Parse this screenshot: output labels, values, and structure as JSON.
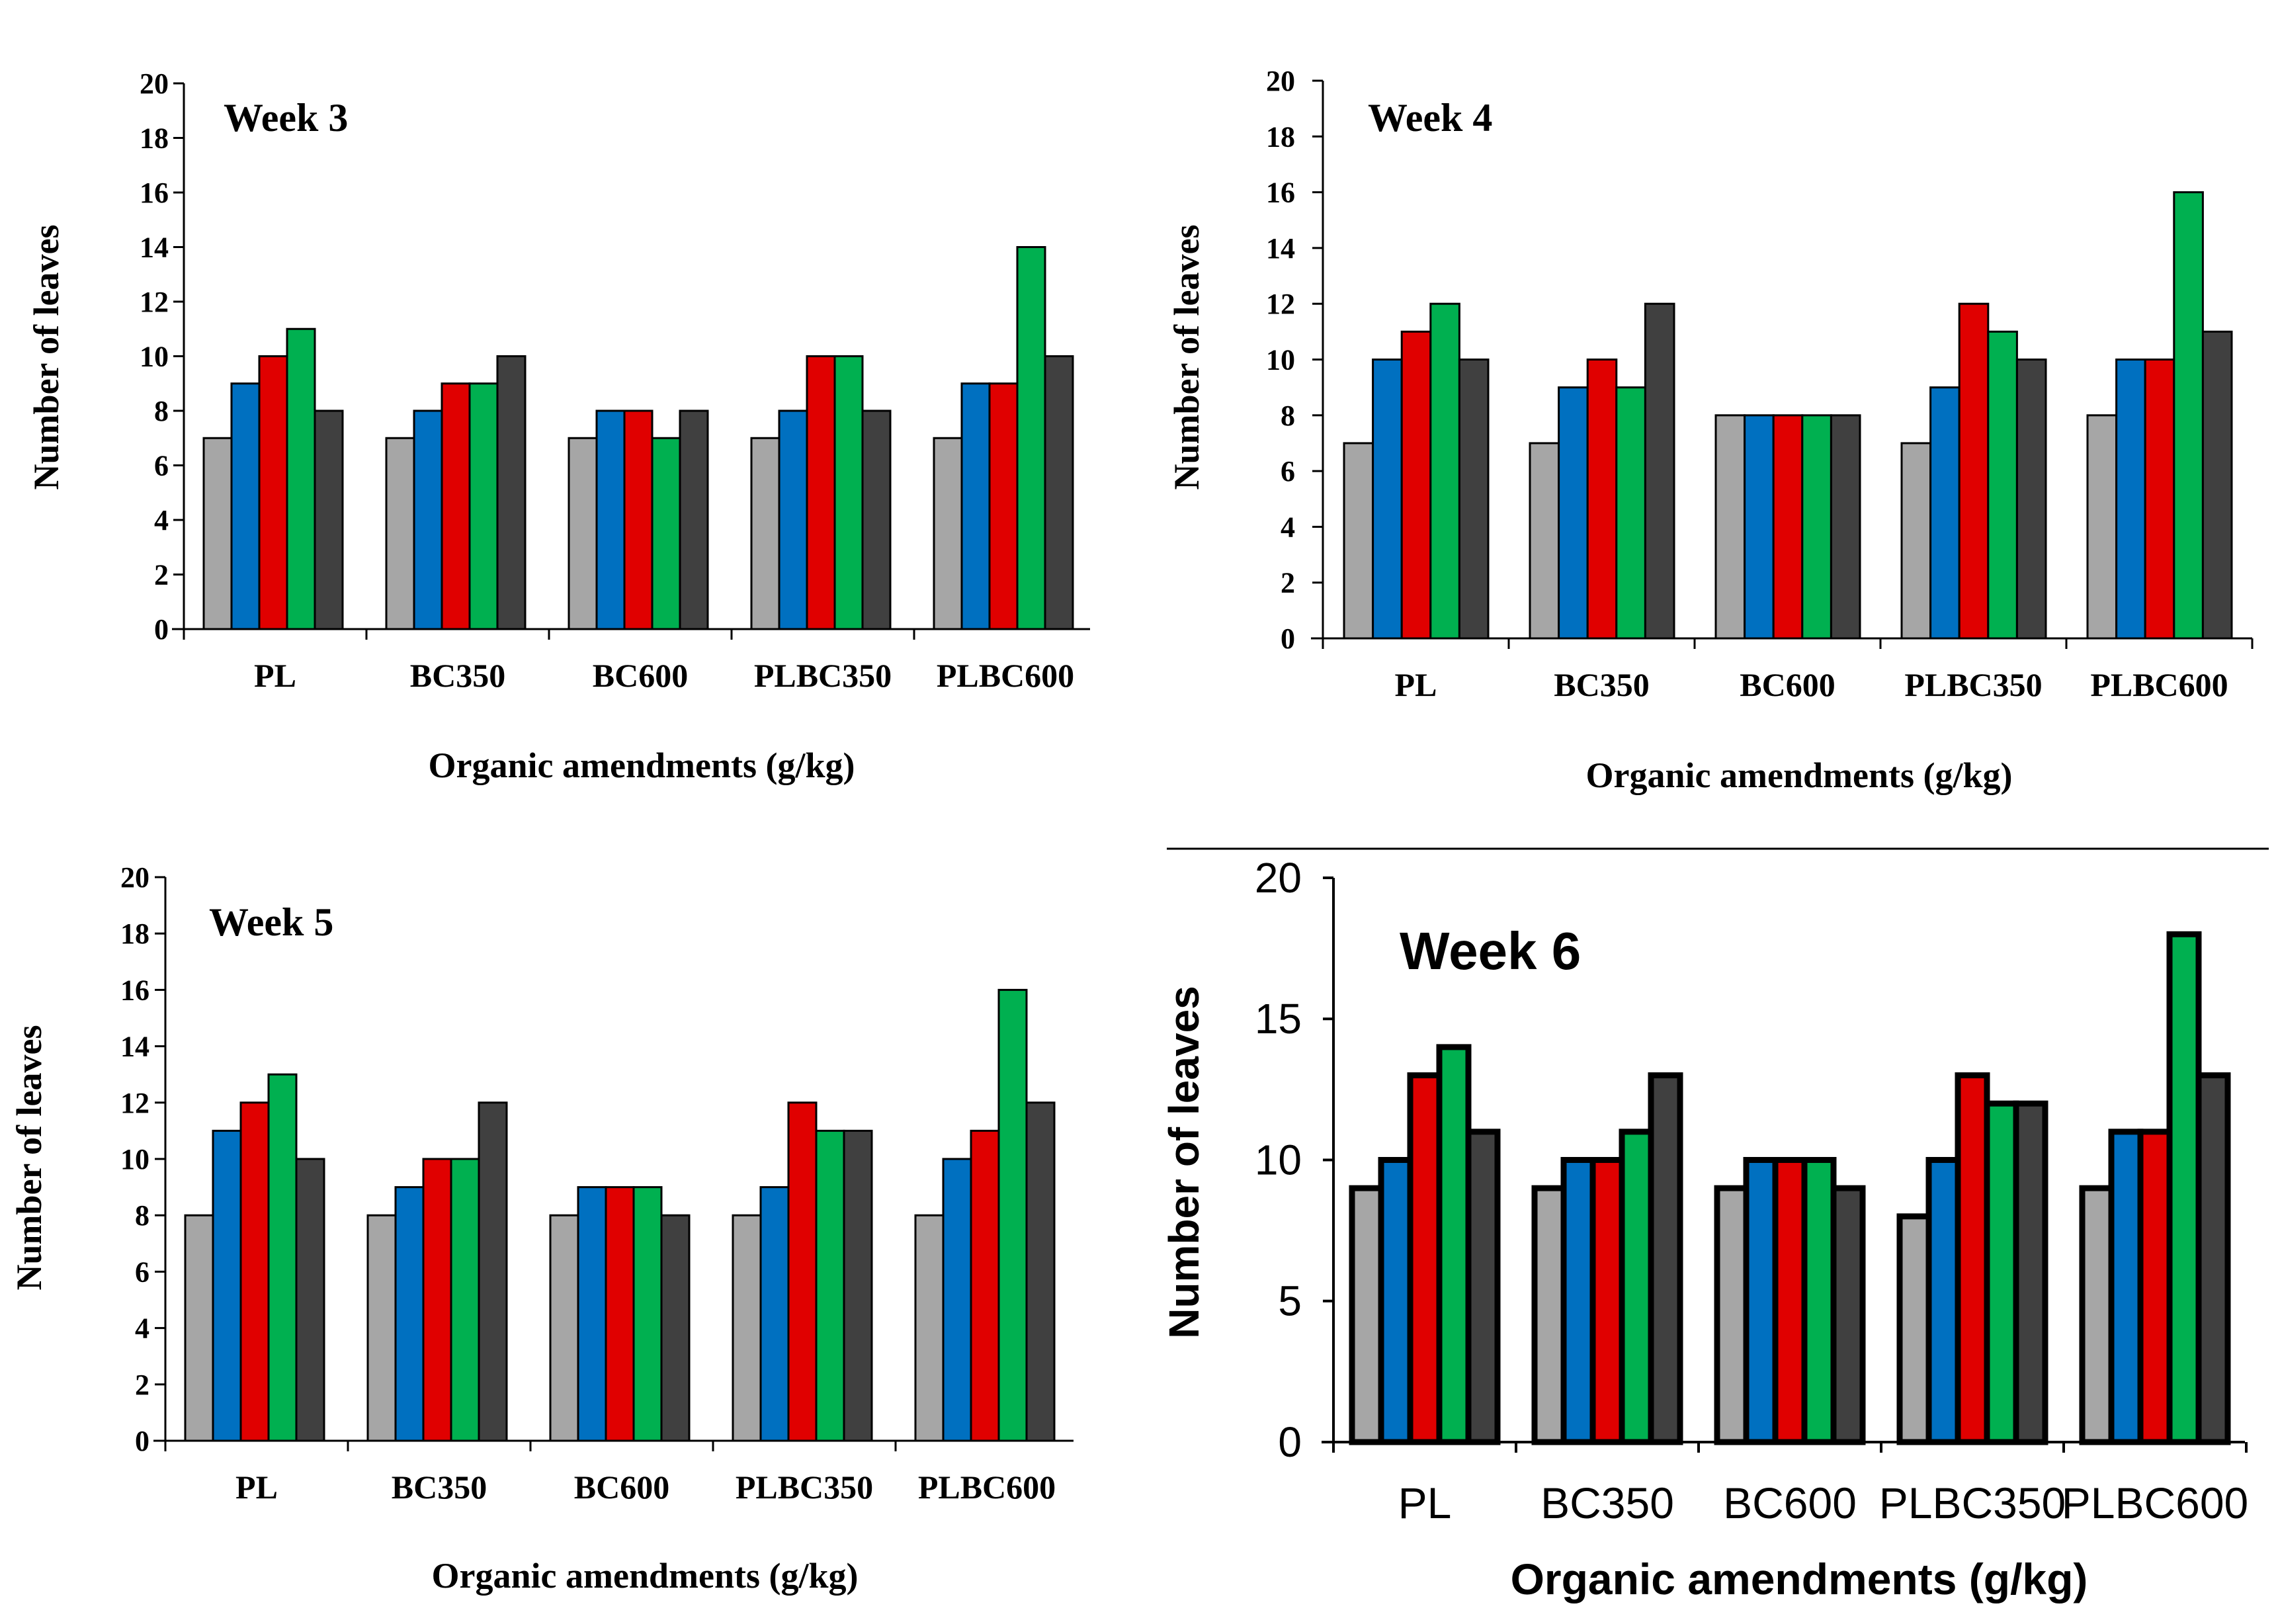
{
  "chart_data": [
    {
      "type": "bar",
      "title": "Week 3",
      "xlabel": "Organic amendments (g/kg)",
      "ylabel": "Number of leaves",
      "ylim": [
        0,
        20
      ],
      "yticks": [
        "0",
        "2",
        "4",
        "6",
        "8",
        "10",
        "12",
        "14",
        "16",
        "18",
        "20"
      ],
      "categories": [
        "PL",
        "BC350",
        "BC600",
        "PLBC350",
        "PLBC600"
      ],
      "series": [
        {
          "name": "series-1",
          "color": "#a6a6a6",
          "values": [
            7,
            7,
            7,
            7,
            7
          ]
        },
        {
          "name": "series-2",
          "color": "#0070c0",
          "values": [
            9,
            8,
            8,
            8,
            9
          ]
        },
        {
          "name": "series-3",
          "color": "#e00000",
          "values": [
            10,
            9,
            8,
            10,
            9
          ]
        },
        {
          "name": "series-4",
          "color": "#00b050",
          "values": [
            11,
            9,
            7,
            10,
            14
          ]
        },
        {
          "name": "series-5",
          "color": "#404040",
          "values": [
            8,
            10,
            8,
            8,
            10
          ]
        }
      ]
    },
    {
      "type": "bar",
      "title": "Week 4",
      "xlabel": "Organic amendments (g/kg)",
      "ylabel": "Number of leaves",
      "ylim": [
        0,
        20
      ],
      "yticks": [
        "0",
        "2",
        "4",
        "6",
        "8",
        "10",
        "12",
        "14",
        "16",
        "18",
        "20"
      ],
      "categories": [
        "PL",
        "BC350",
        "BC600",
        "PLBC350",
        "PLBC600"
      ],
      "series": [
        {
          "name": "series-1",
          "color": "#a6a6a6",
          "values": [
            7,
            7,
            8,
            7,
            8
          ]
        },
        {
          "name": "series-2",
          "color": "#0070c0",
          "values": [
            10,
            9,
            8,
            9,
            10
          ]
        },
        {
          "name": "series-3",
          "color": "#e00000",
          "values": [
            11,
            10,
            8,
            12,
            10
          ]
        },
        {
          "name": "series-4",
          "color": "#00b050",
          "values": [
            12,
            9,
            8,
            11,
            16
          ]
        },
        {
          "name": "series-5",
          "color": "#404040",
          "values": [
            10,
            12,
            8,
            10,
            11
          ]
        }
      ]
    },
    {
      "type": "bar",
      "title": "Week 5",
      "xlabel": "Organic amendments (g/kg)",
      "ylabel": "Number of leaves",
      "ylim": [
        0,
        20
      ],
      "yticks": [
        "0",
        "2",
        "4",
        "6",
        "8",
        "10",
        "12",
        "14",
        "16",
        "18",
        "20"
      ],
      "categories": [
        "PL",
        "BC350",
        "BC600",
        "PLBC350",
        "PLBC600"
      ],
      "series": [
        {
          "name": "series-1",
          "color": "#a6a6a6",
          "values": [
            8,
            8,
            8,
            8,
            8
          ]
        },
        {
          "name": "series-2",
          "color": "#0070c0",
          "values": [
            11,
            9,
            9,
            9,
            10
          ]
        },
        {
          "name": "series-3",
          "color": "#e00000",
          "values": [
            12,
            10,
            9,
            12,
            11
          ]
        },
        {
          "name": "series-4",
          "color": "#00b050",
          "values": [
            13,
            10,
            9,
            11,
            16
          ]
        },
        {
          "name": "series-5",
          "color": "#404040",
          "values": [
            10,
            12,
            8,
            11,
            12
          ]
        }
      ]
    },
    {
      "type": "bar",
      "title": "Week 6",
      "xlabel": "Organic  amendments  (g/kg)",
      "ylabel": "Number  of  leaves",
      "ylim": [
        0,
        20
      ],
      "yticks": [
        "0",
        "5",
        "10",
        "15",
        "20"
      ],
      "categories": [
        "PL",
        "BC350",
        "BC600",
        "PLBC350",
        "PLBC600"
      ],
      "series": [
        {
          "name": "series-1",
          "color": "#a6a6a6",
          "values": [
            9,
            9,
            9,
            8,
            9
          ]
        },
        {
          "name": "series-2",
          "color": "#0070c0",
          "values": [
            10,
            10,
            10,
            10,
            11
          ]
        },
        {
          "name": "series-3",
          "color": "#e00000",
          "values": [
            13,
            10,
            10,
            13,
            11
          ]
        },
        {
          "name": "series-4",
          "color": "#00b050",
          "values": [
            14,
            11,
            10,
            12,
            18
          ]
        },
        {
          "name": "series-5",
          "color": "#404040",
          "values": [
            11,
            13,
            9,
            12,
            13
          ]
        }
      ]
    }
  ]
}
